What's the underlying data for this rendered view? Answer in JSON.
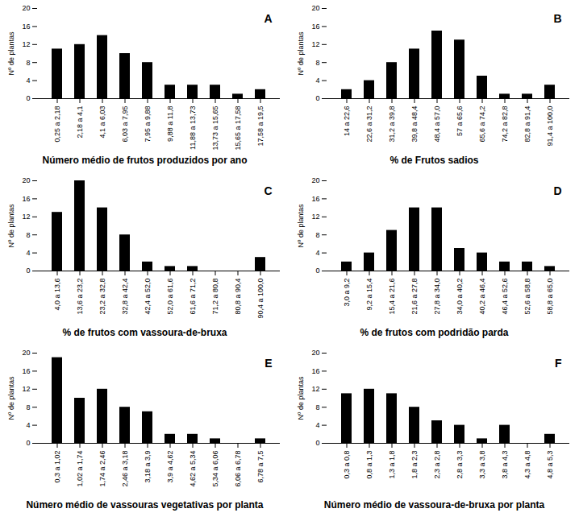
{
  "chart_data": [
    {
      "type": "bar",
      "title": "A",
      "xlabel": "Número médio de frutos produzidos por ano",
      "ylabel": "Nº de plantas",
      "categories": [
        "0,25 a 2,18",
        "2,18 a 4,1",
        "4,1 a 6,03",
        "6,03 a 7,95",
        "7,95 a 9,88",
        "9,88 a 11,8",
        "11,88 a 13,73",
        "13,73 a 15,65",
        "15,65 a 17,58",
        "17,58 a 19,5"
      ],
      "values": [
        11,
        12,
        14,
        10,
        8,
        3,
        3,
        3,
        1,
        2
      ],
      "color": "#000000",
      "ylim": [
        0,
        20
      ],
      "yticks": [
        0,
        4,
        8,
        12,
        16,
        20
      ]
    },
    {
      "type": "bar",
      "title": "B",
      "xlabel": "% de Frutos sadios",
      "ylabel": "Nº de plantas",
      "categories": [
        "14 a 22,6",
        "22,6 a 31,2",
        "31,2 a 39,8",
        "39,8 a 48,4",
        "48,4 a 57,0",
        "57 a 65,6",
        "65,6 a 74,2",
        "74,2 a 82,8",
        "82,8 a 91,4",
        "91,4 a 100,0"
      ],
      "values": [
        2,
        4,
        8,
        11,
        15,
        13,
        5,
        1,
        1,
        3
      ],
      "color": "#000000",
      "ylim": [
        0,
        20
      ],
      "yticks": [
        0,
        4,
        8,
        12,
        16,
        20
      ]
    },
    {
      "type": "bar",
      "title": "C",
      "xlabel": "% de frutos com vassoura-de-bruxa",
      "ylabel": "Nº de plantas",
      "categories": [
        "4,0 a 13,6",
        "13,6 a 23,2",
        "23,2 a 32,8",
        "32,8 a 42,4",
        "42,4 a 52,0",
        "52,0 a 61,6",
        "61,6 a 71,2",
        "71,2 a 80,8",
        "80,8 a 90,4",
        "90,4 a 100,0"
      ],
      "values": [
        13,
        20,
        14,
        8,
        2,
        1,
        1,
        0,
        0,
        3
      ],
      "color": "#000000",
      "ylim": [
        0,
        20
      ],
      "yticks": [
        0,
        4,
        8,
        12,
        16,
        20
      ]
    },
    {
      "type": "bar",
      "title": "D",
      "xlabel": "% de frutos com podridão parda",
      "ylabel": "Nº de plantas",
      "categories": [
        "3,0 a 9,2",
        "9,2 a 15,4",
        "15,4 a 21,6",
        "21,6 a 27,8",
        "27,8 a 34,0",
        "34,0 a 40,2",
        "40,2 a 46,4",
        "46,4 a 52,6",
        "52,6 a 58,8",
        "58,8 a 65,0"
      ],
      "values": [
        2,
        4,
        9,
        14,
        14,
        5,
        4,
        2,
        2,
        1
      ],
      "color": "#000000",
      "ylim": [
        0,
        20
      ],
      "yticks": [
        0,
        4,
        8,
        12,
        16,
        20
      ]
    },
    {
      "type": "bar",
      "title": "E",
      "xlabel": "Número médio de vassouras vegetativas por planta",
      "ylabel": "Nº de plantas",
      "categories": [
        "0,3 a 1,02",
        "1,02 a 1,74",
        "1,74 a 2,46",
        "2,46 a 3,18",
        "3,18 a 3,9",
        "3,9 a 4,62",
        "4,62 a 5,34",
        "5,34 a 6,06",
        "6,06 a 6,78",
        "6,78 a 7,5"
      ],
      "values": [
        19,
        10,
        12,
        8,
        7,
        2,
        2,
        1,
        0,
        1
      ],
      "color": "#000000",
      "ylim": [
        0,
        20
      ],
      "yticks": [
        0,
        4,
        8,
        12,
        16,
        20
      ]
    },
    {
      "type": "bar",
      "title": "F",
      "xlabel": "Número médio de vassoura-de-bruxa por planta",
      "ylabel": "Nº de plantas",
      "categories": [
        "0,3 a 0,8",
        "0,8 a 1,3",
        "1,3 a 1,8",
        "1,8 a 2,3",
        "2,3 a 2,8",
        "2,8 a 3,3",
        "3,3 a 3,8",
        "3,8 a 4,3",
        "4,3 a 4,8",
        "4,8 a 5,3"
      ],
      "values": [
        11,
        12,
        11,
        8,
        5,
        4,
        1,
        4,
        0,
        2
      ],
      "color": "#000000",
      "ylim": [
        0,
        20
      ],
      "yticks": [
        0,
        4,
        8,
        12,
        16,
        20
      ]
    }
  ]
}
